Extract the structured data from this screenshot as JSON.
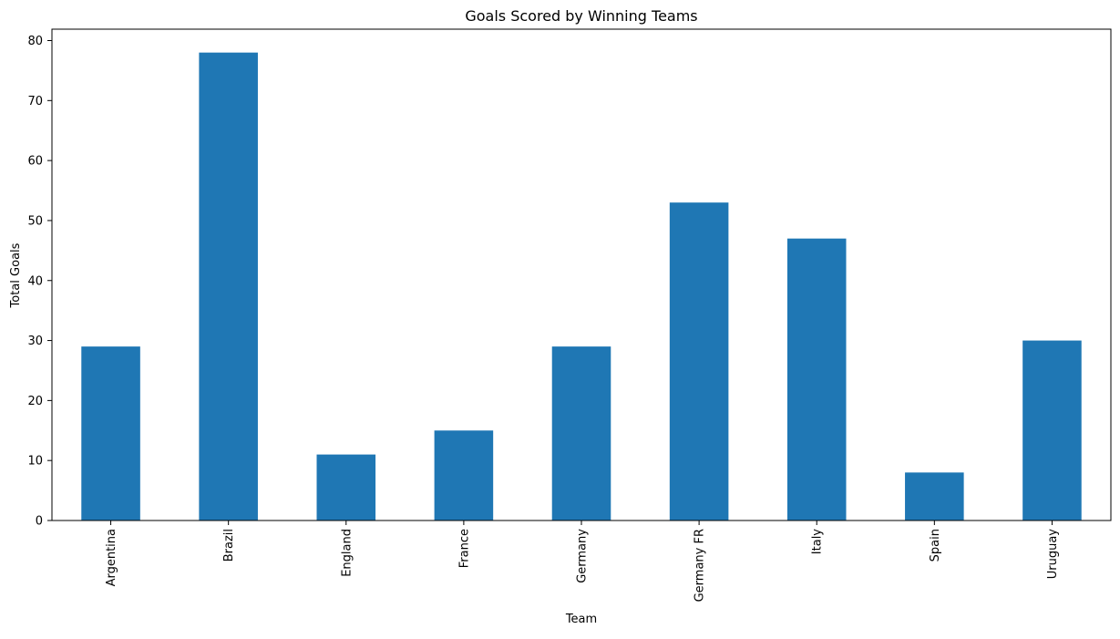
{
  "chart_data": {
    "type": "bar",
    "title": "Goals Scored by Winning Teams",
    "xlabel": "Team",
    "ylabel": "Total Goals",
    "categories": [
      "Argentina",
      "Brazil",
      "England",
      "France",
      "Germany",
      "Germany FR",
      "Italy",
      "Spain",
      "Uruguay"
    ],
    "values": [
      29,
      78,
      11,
      15,
      29,
      53,
      47,
      8,
      30
    ],
    "ylim": [
      0,
      81.9
    ],
    "yticks": [
      0,
      10,
      20,
      30,
      40,
      50,
      60,
      70,
      80
    ],
    "bar_color": "#1f77b4",
    "grid": false,
    "legend": "none"
  }
}
